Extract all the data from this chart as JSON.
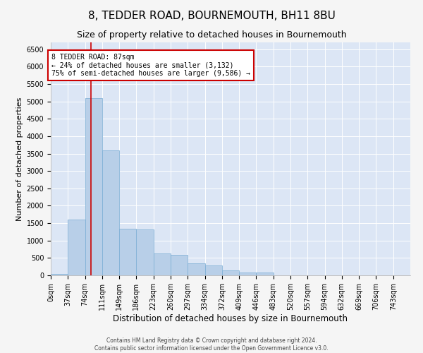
{
  "title": "8, TEDDER ROAD, BOURNEMOUTH, BH11 8BU",
  "subtitle": "Size of property relative to detached houses in Bournemouth",
  "xlabel": "Distribution of detached houses by size in Bournemouth",
  "ylabel": "Number of detached properties",
  "bar_color": "#b8cfe8",
  "bar_edge_color": "#7aadd4",
  "background_color": "#dce6f5",
  "fig_background": "#f5f5f5",
  "categories": [
    "0sqm",
    "37sqm",
    "74sqm",
    "111sqm",
    "149sqm",
    "186sqm",
    "223sqm",
    "260sqm",
    "297sqm",
    "334sqm",
    "372sqm",
    "409sqm",
    "446sqm",
    "483sqm",
    "520sqm",
    "557sqm",
    "594sqm",
    "632sqm",
    "669sqm",
    "706sqm",
    "743sqm"
  ],
  "values": [
    50,
    1600,
    5100,
    3600,
    1350,
    1320,
    620,
    580,
    350,
    290,
    140,
    90,
    90,
    0,
    0,
    0,
    0,
    0,
    0,
    0,
    0
  ],
  "ylim": [
    0,
    6700
  ],
  "yticks": [
    0,
    500,
    1000,
    1500,
    2000,
    2500,
    3000,
    3500,
    4000,
    4500,
    5000,
    5500,
    6000,
    6500
  ],
  "property_sqm": 87,
  "property_line_color": "#cc0000",
  "annotation_text": "8 TEDDER ROAD: 87sqm\n← 24% of detached houses are smaller (3,132)\n75% of semi-detached houses are larger (9,586) →",
  "annotation_box_facecolor": "#ffffff",
  "annotation_box_edgecolor": "#cc0000",
  "footer_line1": "Contains HM Land Registry data © Crown copyright and database right 2024.",
  "footer_line2": "Contains public sector information licensed under the Open Government Licence v3.0.",
  "grid_color": "#ffffff",
  "title_fontsize": 11,
  "subtitle_fontsize": 9,
  "ylabel_fontsize": 8,
  "xlabel_fontsize": 8.5,
  "tick_fontsize": 7,
  "annot_fontsize": 7,
  "footer_fontsize": 5.5,
  "bin_size": 37
}
